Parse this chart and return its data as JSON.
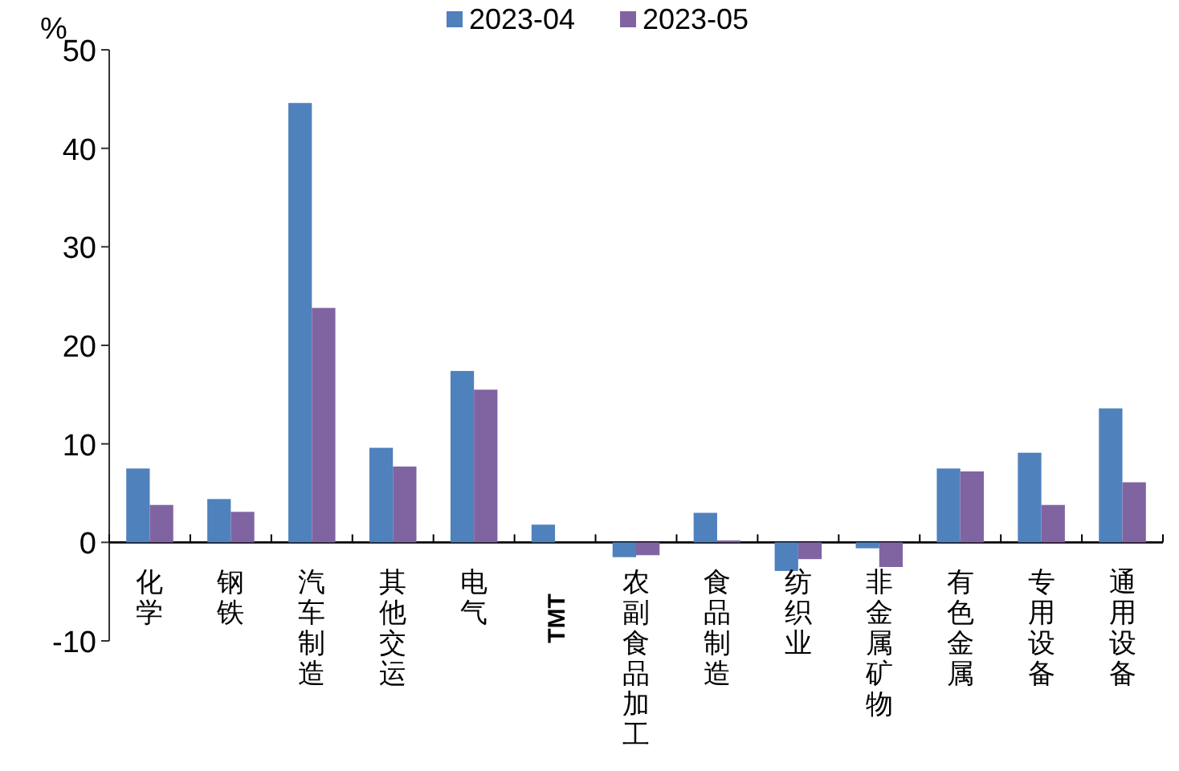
{
  "chart_data": {
    "type": "bar",
    "ylabel": "%",
    "categories": [
      "化学",
      "钢铁",
      "汽车制造",
      "其他交运",
      "电气",
      "TMT",
      "农副食品加工",
      "食品制造",
      "纺织业",
      "非金属矿物",
      "有色金属",
      "专用设备",
      "通用设备"
    ],
    "series": [
      {
        "name": "2023-04",
        "color": "#4f81bd",
        "values": [
          7.5,
          4.4,
          44.6,
          9.6,
          17.4,
          1.8,
          -1.5,
          3.0,
          -2.9,
          -0.6,
          7.5,
          9.1,
          13.6
        ]
      },
      {
        "name": "2023-05",
        "color": "#8064a2",
        "values": [
          3.8,
          3.1,
          23.8,
          7.7,
          15.5,
          0,
          -1.3,
          0.2,
          -1.7,
          -2.5,
          7.2,
          3.8,
          6.1
        ]
      }
    ],
    "ylim": [
      -10,
      50
    ],
    "yticks": [
      -10,
      0,
      10,
      20,
      30,
      40,
      50
    ],
    "legend": "top"
  }
}
